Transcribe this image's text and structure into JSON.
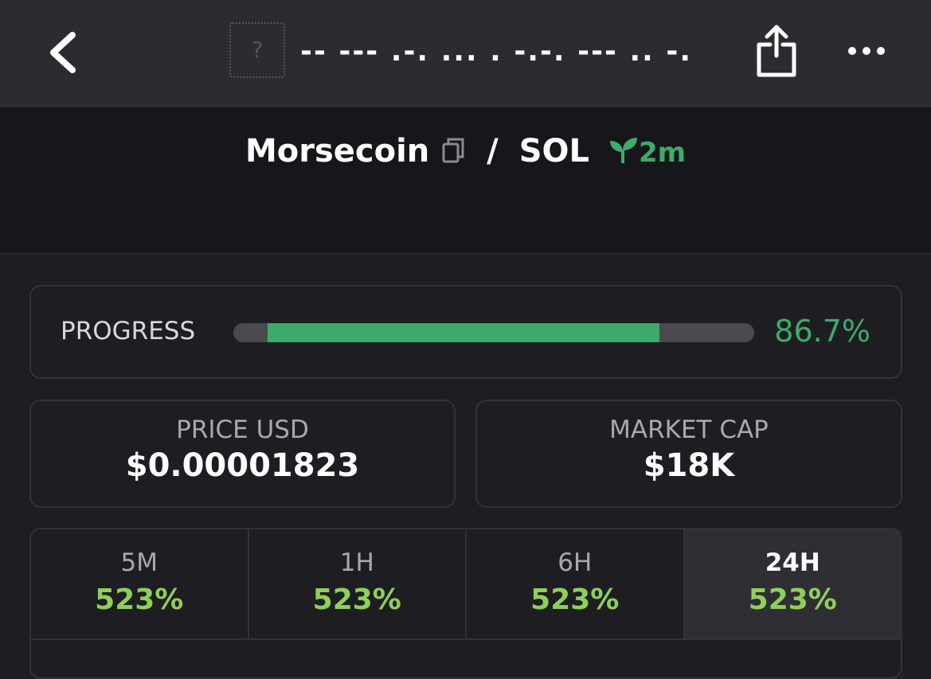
{
  "header": {
    "icon_placeholder": "?",
    "title": "-- --- .-. ... . -.-. --- .. -."
  },
  "pair": {
    "base": "Morsecoin",
    "separator": "/",
    "quote": "SOL",
    "age": "2m"
  },
  "progress": {
    "label": "PROGRESS",
    "value": 86.7,
    "value_label": "86.7%"
  },
  "stats": [
    {
      "label": "PRICE USD",
      "value": "$0.00001823"
    },
    {
      "label": "MARKET CAP",
      "value": "$18K"
    }
  ],
  "changes": {
    "periods": [
      "5M",
      "1H",
      "6H",
      "24H"
    ],
    "values": [
      523,
      523,
      523,
      523
    ],
    "value_labels": [
      "523%",
      "523%",
      "523%",
      "523%"
    ]
  }
}
